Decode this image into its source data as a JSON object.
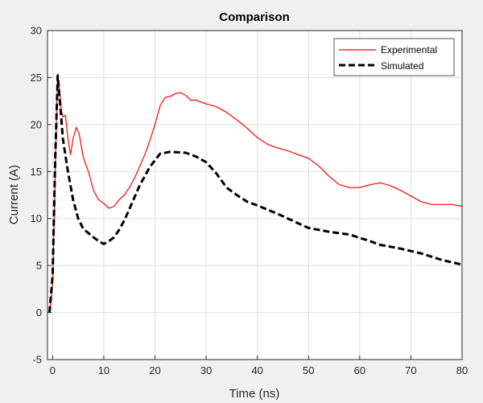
{
  "chart_data": {
    "type": "line",
    "title": "Comparison",
    "xlabel": "Time (ns)",
    "ylabel": "Current (A)",
    "xlim": [
      -1,
      80
    ],
    "ylim": [
      -5,
      30
    ],
    "xticks": [
      0,
      10,
      20,
      30,
      40,
      50,
      60,
      70,
      80
    ],
    "yticks": [
      -5,
      0,
      5,
      10,
      15,
      20,
      25,
      30
    ],
    "grid": true,
    "legend_position": "top-right",
    "series": [
      {
        "name": "Experimental",
        "color": "#ff0000",
        "style": "solid",
        "points": [
          [
            -0.6,
            0.0
          ],
          [
            0.0,
            3.0
          ],
          [
            0.4,
            12.0
          ],
          [
            0.8,
            22.0
          ],
          [
            1.0,
            25.4
          ],
          [
            1.3,
            24.0
          ],
          [
            1.7,
            21.5
          ],
          [
            2.0,
            20.8
          ],
          [
            2.5,
            21.0
          ],
          [
            3.0,
            18.5
          ],
          [
            3.5,
            16.8
          ],
          [
            4.0,
            18.5
          ],
          [
            4.6,
            19.7
          ],
          [
            5.2,
            19.0
          ],
          [
            6.0,
            16.5
          ],
          [
            7.0,
            15.0
          ],
          [
            8.0,
            13.0
          ],
          [
            9.0,
            12.0
          ],
          [
            10.0,
            11.6
          ],
          [
            11.0,
            11.1
          ],
          [
            12.0,
            11.3
          ],
          [
            13.0,
            12.0
          ],
          [
            14.0,
            12.5
          ],
          [
            15.0,
            13.3
          ],
          [
            16.0,
            14.3
          ],
          [
            17.0,
            15.5
          ],
          [
            18.0,
            16.8
          ],
          [
            19.0,
            18.3
          ],
          [
            20.0,
            20.0
          ],
          [
            21.0,
            22.0
          ],
          [
            22.0,
            22.9
          ],
          [
            23.0,
            23.0
          ],
          [
            24.0,
            23.3
          ],
          [
            25.0,
            23.4
          ],
          [
            26.0,
            23.1
          ],
          [
            27.0,
            22.6
          ],
          [
            28.0,
            22.6
          ],
          [
            30.0,
            22.2
          ],
          [
            32.0,
            21.9
          ],
          [
            34.0,
            21.3
          ],
          [
            36.0,
            20.5
          ],
          [
            38.0,
            19.6
          ],
          [
            40.0,
            18.6
          ],
          [
            42.0,
            17.9
          ],
          [
            44.0,
            17.5
          ],
          [
            46.0,
            17.2
          ],
          [
            48.0,
            16.8
          ],
          [
            50.0,
            16.4
          ],
          [
            52.0,
            15.6
          ],
          [
            54.0,
            14.5
          ],
          [
            56.0,
            13.6
          ],
          [
            58.0,
            13.3
          ],
          [
            60.0,
            13.3
          ],
          [
            62.0,
            13.6
          ],
          [
            64.0,
            13.8
          ],
          [
            66.0,
            13.5
          ],
          [
            68.0,
            13.0
          ],
          [
            70.0,
            12.4
          ],
          [
            72.0,
            11.8
          ],
          [
            74.0,
            11.5
          ],
          [
            76.0,
            11.5
          ],
          [
            78.0,
            11.5
          ],
          [
            80.0,
            11.3
          ]
        ]
      },
      {
        "name": "Simulated",
        "color": "#000000",
        "style": "dashed",
        "points": [
          [
            -0.6,
            0.0
          ],
          [
            0.0,
            4.0
          ],
          [
            0.5,
            16.0
          ],
          [
            1.0,
            25.2
          ],
          [
            1.5,
            22.0
          ],
          [
            2.0,
            18.5
          ],
          [
            3.0,
            15.0
          ],
          [
            4.0,
            12.0
          ],
          [
            5.0,
            10.0
          ],
          [
            6.0,
            8.9
          ],
          [
            8.0,
            8.0
          ],
          [
            9.0,
            7.6
          ],
          [
            10.0,
            7.3
          ],
          [
            11.0,
            7.6
          ],
          [
            12.0,
            8.0
          ],
          [
            13.0,
            8.8
          ],
          [
            14.0,
            9.8
          ],
          [
            15.0,
            11.0
          ],
          [
            17.0,
            13.5
          ],
          [
            19.0,
            15.5
          ],
          [
            21.0,
            16.9
          ],
          [
            23.0,
            17.1
          ],
          [
            26.0,
            17.0
          ],
          [
            28.0,
            16.6
          ],
          [
            30.0,
            16.0
          ],
          [
            32.0,
            14.8
          ],
          [
            34.0,
            13.3
          ],
          [
            36.0,
            12.5
          ],
          [
            38.0,
            11.8
          ],
          [
            40.0,
            11.4
          ],
          [
            44.0,
            10.5
          ],
          [
            48.0,
            9.5
          ],
          [
            50.0,
            9.0
          ],
          [
            54.0,
            8.6
          ],
          [
            58.0,
            8.3
          ],
          [
            62.0,
            7.6
          ],
          [
            64.0,
            7.2
          ],
          [
            68.0,
            6.8
          ],
          [
            72.0,
            6.3
          ],
          [
            76.0,
            5.6
          ],
          [
            80.0,
            5.1
          ]
        ]
      }
    ]
  }
}
